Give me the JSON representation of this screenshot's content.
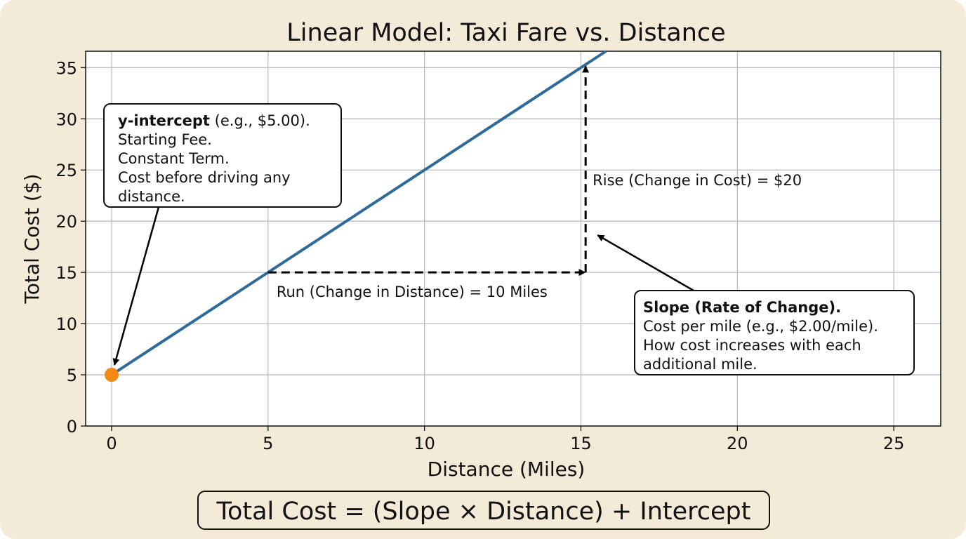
{
  "chart_data": {
    "type": "line",
    "title": "Linear Model: Taxi Fare vs. Distance",
    "xlabel": "Distance (Miles)",
    "ylabel": "Total Cost ($)",
    "xlim": [
      -0.83,
      26.5
    ],
    "ylim": [
      0,
      36.6
    ],
    "xticks": [
      0,
      5,
      10,
      15,
      20,
      25
    ],
    "yticks": [
      0,
      5,
      10,
      15,
      20,
      25,
      30,
      35
    ],
    "grid": true,
    "series": [
      {
        "x": [
          0,
          15.8
        ],
        "y": [
          5,
          36.6
        ],
        "color": "#2e6a9a"
      }
    ],
    "intercept_point": {
      "x": 0,
      "y": 5,
      "color": "#f28a14"
    },
    "run_arrow": {
      "from": [
        5,
        15
      ],
      "to": [
        15,
        15
      ],
      "label": "Run (Change in Distance) = 10 Miles"
    },
    "rise_arrow": {
      "from": [
        15.15,
        15
      ],
      "to": [
        15.15,
        35
      ],
      "label": "Rise (Change in Cost) = $20"
    },
    "annotations": [
      {
        "bold": "y-intercept",
        "lines": [
          " (e.g., $5.00).",
          "Starting Fee.",
          "Constant Term.",
          "Cost before driving any",
          "distance."
        ],
        "points_to": [
          0,
          5
        ]
      },
      {
        "bold": "Slope (Rate of Change).",
        "lines": [
          "Cost per mile (e.g., $2.00/mile).",
          "How cost increases with each",
          "additional mile."
        ],
        "points_to": [
          15.4,
          18.5
        ]
      }
    ],
    "formula": "Total Cost = (Slope × Distance) + Intercept"
  }
}
